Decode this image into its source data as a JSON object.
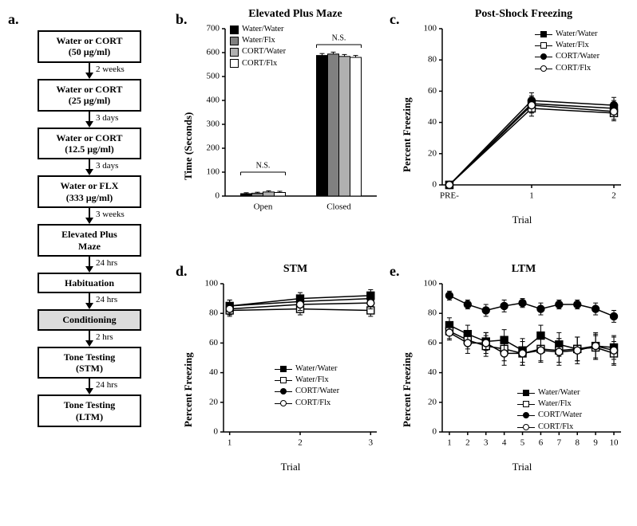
{
  "panel_labels": {
    "a": "a.",
    "b": "b.",
    "c": "c.",
    "d": "d.",
    "e": "e."
  },
  "flowchart": {
    "boxes": [
      {
        "line1": "Water or CORT",
        "line2": "(50 µg/ml)",
        "shaded": false
      },
      {
        "line1": "Water or CORT",
        "line2": "(25 µg/ml)",
        "shaded": false
      },
      {
        "line1": "Water or CORT",
        "line2": "(12.5 µg/ml)",
        "shaded": false
      },
      {
        "line1": "Water or FLX",
        "line2": "(333 µg/ml)",
        "shaded": false
      },
      {
        "line1": "Elevated Plus",
        "line2": "Maze",
        "shaded": false
      },
      {
        "line1": "Habituation",
        "line2": "",
        "shaded": false
      },
      {
        "line1": "Conditioning",
        "line2": "",
        "shaded": true
      },
      {
        "line1": "Tone Testing",
        "line2": "(STM)",
        "shaded": false
      },
      {
        "line1": "Tone Testing",
        "line2": "(LTM)",
        "shaded": false
      }
    ],
    "arrows": [
      "2 weeks",
      "3 days",
      "3 days",
      "3 weeks",
      "24 hrs",
      "24 hrs",
      "2 hrs",
      "24 hrs"
    ]
  },
  "groups": {
    "0": {
      "label": "Water/Water",
      "color": "#000000",
      "shape": "square",
      "filled": true
    },
    "1": {
      "label": "Water/Flx",
      "color": "#808080",
      "shape": "square",
      "filled": false
    },
    "2": {
      "label": "CORT/Water",
      "color": "#b0b0b0",
      "shape": "circle",
      "filled": true
    },
    "3": {
      "label": "CORT/Flx",
      "color": "#ffffff",
      "shape": "circle",
      "filled": false
    }
  },
  "panel_b": {
    "title": "Elevated Plus Maze",
    "ylabel": "Time (Seconds)",
    "categories": [
      "Open",
      "Closed"
    ],
    "ylim": [
      0,
      700
    ],
    "ytick_step": 100,
    "bar_colors": [
      "#000000",
      "#808080",
      "#b0b0b0",
      "#ffffff"
    ],
    "values": {
      "Open": [
        10,
        12,
        17,
        15
      ],
      "Closed": [
        588,
        594,
        584,
        580
      ]
    },
    "errors": {
      "Open": [
        4,
        4,
        5,
        5
      ],
      "Closed": [
        8,
        8,
        8,
        8
      ]
    },
    "ns_label": "N.S."
  },
  "panel_c": {
    "title": "Post-Shock Freezing",
    "ylabel": "Percent Freezing",
    "xlabel": "Trial",
    "xticks": [
      "PRE-",
      "1",
      "2"
    ],
    "ylim": [
      0,
      100
    ],
    "ytick_step": 20,
    "series": {
      "Water/Water": [
        0,
        52,
        49
      ],
      "Water/Flx": [
        0,
        49,
        46
      ],
      "CORT/Water": [
        0,
        54,
        51
      ],
      "CORT/Flx": [
        0,
        51,
        47
      ]
    },
    "errors": {
      "Water/Water": [
        0,
        5,
        5
      ],
      "Water/Flx": [
        0,
        5,
        5
      ],
      "CORT/Water": [
        0,
        5,
        5
      ],
      "CORT/Flx": [
        0,
        5,
        5
      ]
    }
  },
  "panel_d": {
    "title": "STM",
    "ylabel": "Percent Freezing",
    "xlabel": "Trial",
    "xticks": [
      "1",
      "2",
      "3"
    ],
    "ylim": [
      0,
      100
    ],
    "ytick_step": 20,
    "series": {
      "Water/Water": [
        85,
        90,
        92
      ],
      "Water/Flx": [
        82,
        83,
        82
      ],
      "CORT/Water": [
        85,
        88,
        90
      ],
      "CORT/Flx": [
        83,
        86,
        87
      ]
    },
    "errors": {
      "Water/Water": [
        4,
        4,
        4
      ],
      "Water/Flx": [
        4,
        4,
        4
      ],
      "CORT/Water": [
        4,
        4,
        4
      ],
      "CORT/Flx": [
        4,
        4,
        4
      ]
    }
  },
  "panel_e": {
    "title": "LTM",
    "ylabel": "Percent Freezing",
    "xlabel": "Trial",
    "xticks": [
      "1",
      "2",
      "3",
      "4",
      "5",
      "6",
      "7",
      "8",
      "9",
      "10"
    ],
    "ylim": [
      0,
      100
    ],
    "ytick_step": 20,
    "series": {
      "Water/Water": [
        72,
        66,
        61,
        62,
        55,
        65,
        59,
        56,
        58,
        57
      ],
      "Water/Flx": [
        68,
        62,
        58,
        56,
        53,
        56,
        55,
        56,
        57,
        53
      ],
      "CORT/Water": [
        92,
        86,
        82,
        85,
        87,
        83,
        86,
        86,
        83,
        78
      ],
      "CORT/Flx": [
        67,
        60,
        60,
        53,
        53,
        55,
        54,
        55,
        58,
        55
      ]
    },
    "errors": {
      "Water/Water": [
        5,
        6,
        6,
        7,
        8,
        7,
        8,
        8,
        8,
        8
      ],
      "Water/Flx": [
        5,
        6,
        7,
        8,
        8,
        8,
        8,
        8,
        8,
        8
      ],
      "CORT/Water": [
        3,
        3,
        4,
        4,
        3,
        4,
        3,
        3,
        4,
        4
      ],
      "CORT/Flx": [
        5,
        7,
        7,
        8,
        8,
        8,
        9,
        9,
        9,
        9
      ]
    }
  },
  "style": {
    "axis_color": "#000000",
    "tick_fontsize": 11,
    "line_width": 1.5,
    "marker_size": 4.5
  }
}
